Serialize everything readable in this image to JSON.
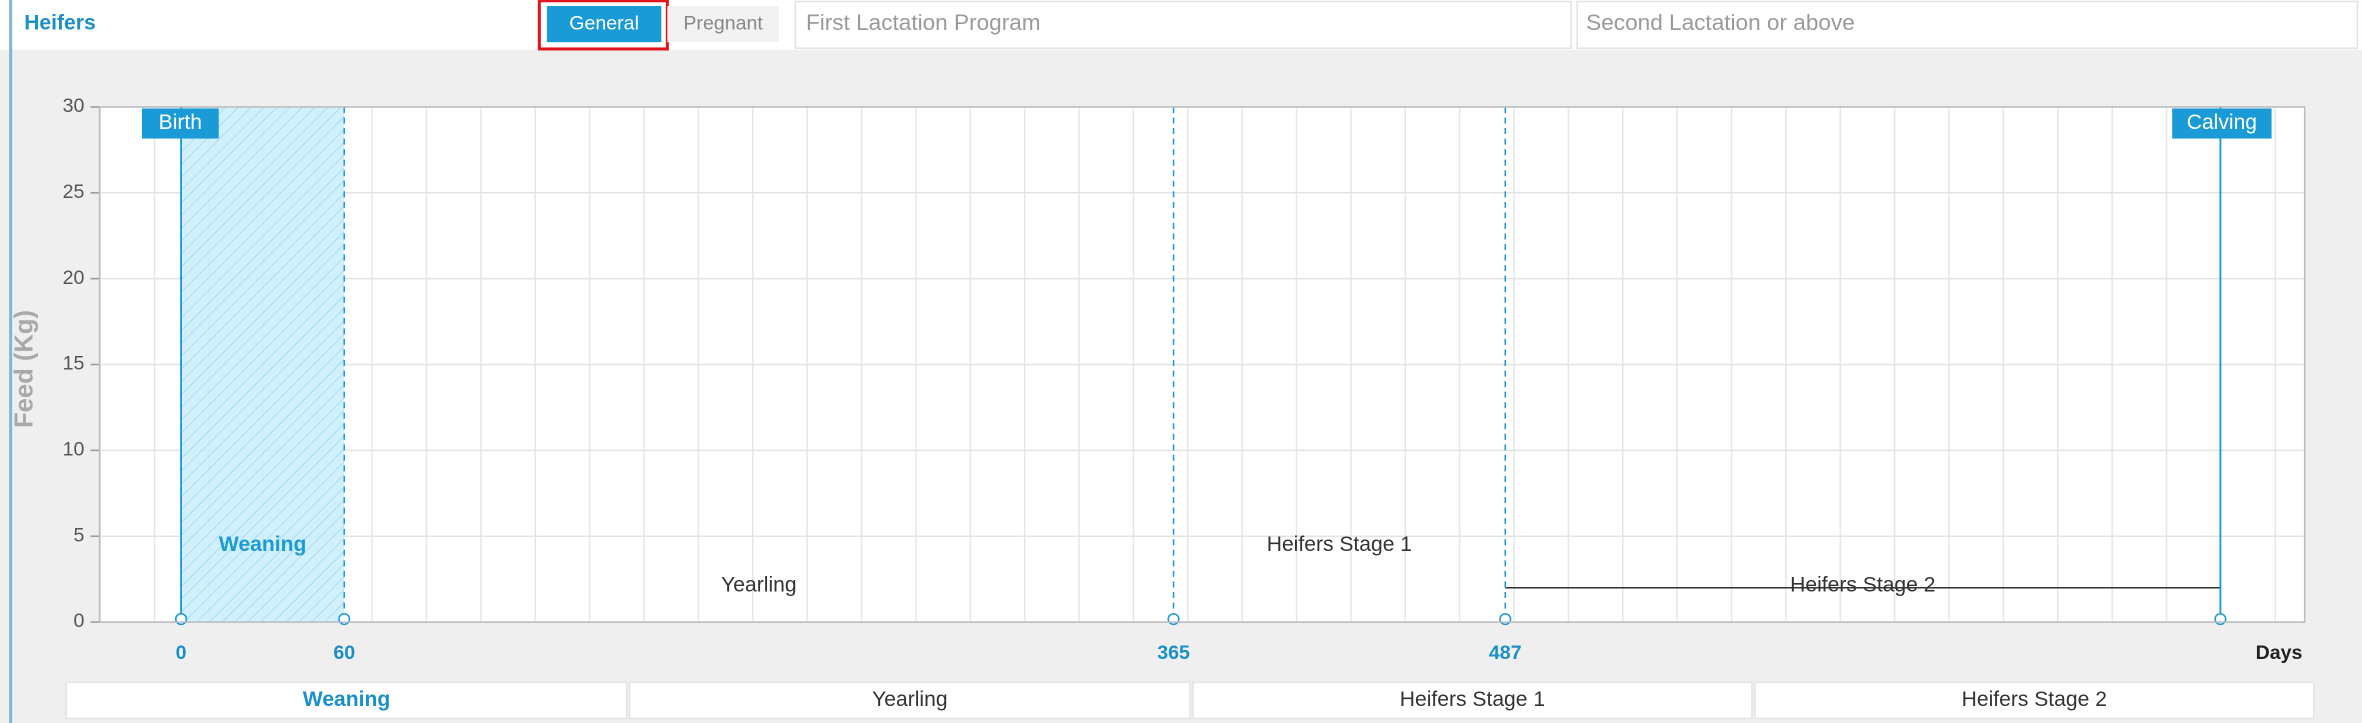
{
  "header": {
    "title": "Heifers",
    "tabs": [
      {
        "label": "General",
        "active": true
      },
      {
        "label": "Pregnant",
        "active": false
      }
    ],
    "programs": [
      "First Lactation Program",
      "Second Lactation or above"
    ]
  },
  "chart_data": {
    "type": "timeline",
    "y_label": "Feed (Kg)",
    "x_label": "Days",
    "xlim": [
      -30,
      781
    ],
    "ylim": [
      0,
      30
    ],
    "xticks": [
      0,
      60,
      365,
      487
    ],
    "yticks": [
      0,
      5,
      10,
      15,
      20,
      25,
      30
    ],
    "grid": true,
    "color": "#1a9bd7",
    "events": [
      {
        "label": "Birth",
        "x": 0
      },
      {
        "label": "Calving",
        "x": 750
      }
    ],
    "stages": [
      {
        "name": "Weaning",
        "start": 0,
        "end": 60
      },
      {
        "name": "Yearling",
        "start": 60,
        "end": 365
      },
      {
        "name": "Heifers Stage 1",
        "start": 365,
        "end": 487
      },
      {
        "name": "Heifers Stage 2",
        "start": 487,
        "end": 750,
        "level": 2
      }
    ]
  }
}
